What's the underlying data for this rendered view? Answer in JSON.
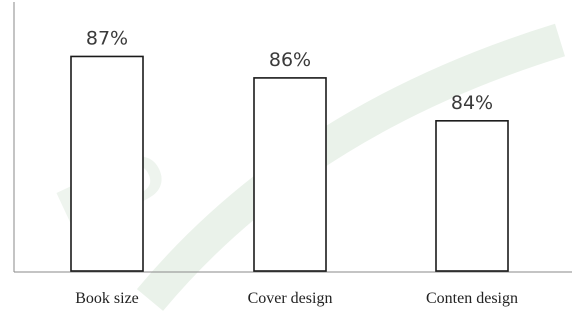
{
  "chart_data": {
    "type": "bar",
    "categories": [
      "Book size",
      "Cover design",
      "Conten design"
    ],
    "values": [
      87,
      86,
      84
    ],
    "value_labels": [
      "87%",
      "86%",
      "84%"
    ],
    "title": "",
    "xlabel": "",
    "ylabel": "",
    "ylim": [
      77,
      88
    ],
    "grid": false,
    "legend": "none",
    "colors": {
      "bar_fill": "#ffffff",
      "bar_stroke": "#1a1a1a",
      "axis": "#8a8a8a"
    }
  }
}
